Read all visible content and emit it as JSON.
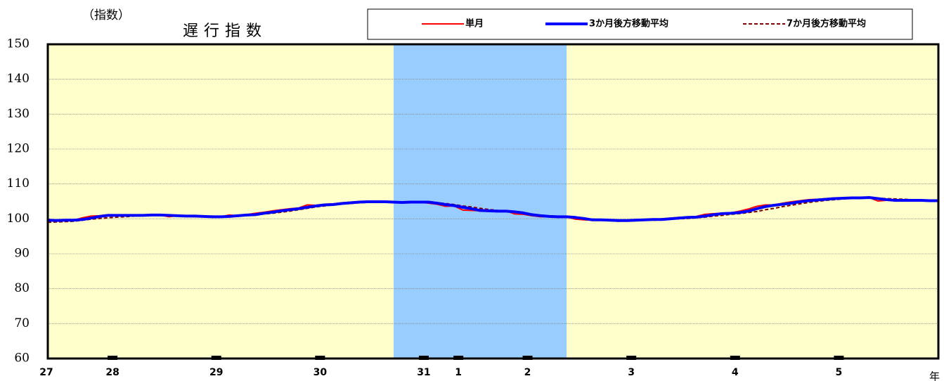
{
  "chart_data": {
    "type": "line",
    "title": "遅行指数",
    "y_label": "（指数）",
    "x_unit_label": "年",
    "categories": [
      "27",
      null,
      null,
      null,
      null,
      null,
      null,
      "28",
      null,
      null,
      null,
      null,
      null,
      null,
      null,
      null,
      null,
      null,
      null,
      "29",
      null,
      null,
      null,
      null,
      null,
      null,
      null,
      null,
      null,
      null,
      null,
      "30",
      null,
      null,
      null,
      null,
      null,
      null,
      null,
      null,
      null,
      null,
      null,
      "31",
      null,
      null,
      null,
      "1",
      null,
      null,
      null,
      null,
      null,
      null,
      null,
      "2",
      null,
      null,
      null,
      null,
      null,
      null,
      null,
      null,
      null,
      null,
      null,
      "3",
      null,
      null,
      null,
      null,
      null,
      null,
      null,
      null,
      null,
      null,
      null,
      "4",
      null,
      null,
      null,
      null,
      null,
      null,
      null,
      null,
      null,
      null,
      null,
      "5",
      null,
      null,
      null,
      null,
      null,
      null,
      null,
      null,
      null,
      null,
      null,
      null
    ],
    "series": [
      {
        "name": "単月",
        "color": "#ff0000",
        "style": "solid",
        "width": 2,
        "values": [
          99.9,
          99.5,
          99.6,
          99.6,
          100.3,
          100.8,
          100.9,
          101.2,
          101.0,
          100.9,
          101.1,
          101.0,
          101.2,
          101.1,
          100.6,
          100.9,
          100.8,
          100.6,
          100.7,
          100.5,
          100.6,
          101.1,
          100.9,
          101.2,
          101.6,
          101.9,
          102.3,
          102.6,
          102.9,
          103.1,
          104.0,
          103.9,
          104.2,
          104.3,
          104.6,
          104.8,
          104.9,
          105.0,
          104.9,
          104.8,
          104.6,
          104.7,
          105.0,
          104.8,
          104.5,
          104.2,
          103.6,
          103.7,
          102.5,
          102.4,
          102.3,
          102.1,
          102.2,
          102.3,
          101.4,
          101.3,
          100.9,
          100.6,
          100.7,
          100.4,
          100.6,
          99.9,
          99.7,
          99.6,
          99.8,
          99.5,
          99.3,
          99.6,
          99.8,
          99.7,
          99.8,
          100.0,
          100.2,
          100.4,
          100.5,
          100.7,
          101.3,
          101.5,
          101.6,
          101.7,
          102.2,
          102.8,
          103.6,
          104.0,
          104.0,
          104.5,
          104.9,
          105.2,
          105.5,
          105.6,
          105.8,
          106.0,
          105.8,
          106.1,
          106.2,
          106.1,
          105.1,
          105.3,
          105.4,
          105.3,
          105.3,
          105.2,
          105.2,
          105.0
        ]
      },
      {
        "name": "3か月後方移動平均",
        "color": "#0000ff",
        "style": "solid",
        "width": 4,
        "values": [
          99.6,
          99.5,
          99.6,
          99.6,
          99.8,
          100.2,
          100.7,
          101.0,
          101.0,
          101.0,
          101.0,
          101.0,
          101.1,
          101.1,
          101.0,
          100.9,
          100.8,
          100.8,
          100.7,
          100.6,
          100.6,
          100.7,
          100.9,
          101.1,
          101.2,
          101.6,
          101.9,
          102.3,
          102.6,
          102.9,
          103.3,
          103.7,
          104.0,
          104.1,
          104.4,
          104.6,
          104.8,
          104.9,
          104.9,
          104.9,
          104.8,
          104.7,
          104.8,
          104.8,
          104.8,
          104.5,
          104.1,
          103.8,
          103.3,
          102.9,
          102.4,
          102.3,
          102.2,
          102.2,
          102.0,
          101.7,
          101.2,
          100.9,
          100.7,
          100.6,
          100.6,
          100.4,
          100.1,
          99.7,
          99.7,
          99.6,
          99.5,
          99.5,
          99.6,
          99.7,
          99.8,
          99.8,
          100.0,
          100.2,
          100.4,
          100.5,
          100.8,
          101.2,
          101.5,
          101.6,
          101.8,
          102.2,
          102.9,
          103.5,
          103.9,
          104.2,
          104.5,
          104.9,
          105.2,
          105.4,
          105.6,
          105.8,
          105.9,
          106.0,
          106.0,
          106.1,
          105.8,
          105.5,
          105.3,
          105.3,
          105.3,
          105.3,
          105.2,
          105.2
        ]
      },
      {
        "name": "7か月後方移動平均",
        "color": "#800000",
        "style": "dashed",
        "width": 2,
        "values": [
          99.0,
          99.1,
          99.2,
          99.3,
          99.6,
          99.9,
          100.1,
          100.3,
          100.5,
          100.6,
          100.8,
          100.9,
          101.0,
          101.0,
          101.0,
          101.0,
          100.9,
          100.9,
          100.8,
          100.8,
          100.7,
          100.8,
          100.9,
          101.0,
          101.2,
          101.4,
          101.6,
          101.9,
          102.2,
          102.6,
          103.0,
          103.4,
          103.7,
          104.0,
          104.2,
          104.4,
          104.6,
          104.7,
          104.8,
          104.9,
          104.9,
          104.9,
          104.9,
          104.8,
          104.7,
          104.6,
          104.4,
          104.1,
          103.7,
          103.4,
          103.0,
          102.7,
          102.4,
          102.2,
          101.9,
          101.6,
          101.3,
          101.1,
          100.8,
          100.6,
          100.4,
          100.2,
          100.0,
          99.9,
          99.8,
          99.7,
          99.6,
          99.6,
          99.6,
          99.6,
          99.6,
          99.7,
          99.9,
          100.0,
          100.1,
          100.3,
          100.5,
          100.8,
          101.0,
          101.3,
          101.5,
          101.8,
          102.1,
          102.6,
          103.0,
          103.5,
          103.9,
          104.3,
          104.7,
          105.0,
          105.3,
          105.5,
          105.7,
          105.9,
          106.0,
          106.0,
          105.9,
          105.8,
          105.7,
          105.6,
          105.5,
          105.4,
          105.3,
          105.2
        ]
      }
    ],
    "ylim": [
      60,
      150
    ],
    "yticks": [
      60,
      70,
      80,
      90,
      100,
      110,
      120,
      130,
      140,
      150
    ],
    "grid": true,
    "background": "#ffffcc",
    "shaded_ranges": [
      {
        "from": 40,
        "to": 60,
        "color": "#99ccff"
      }
    ],
    "legend": "top"
  }
}
